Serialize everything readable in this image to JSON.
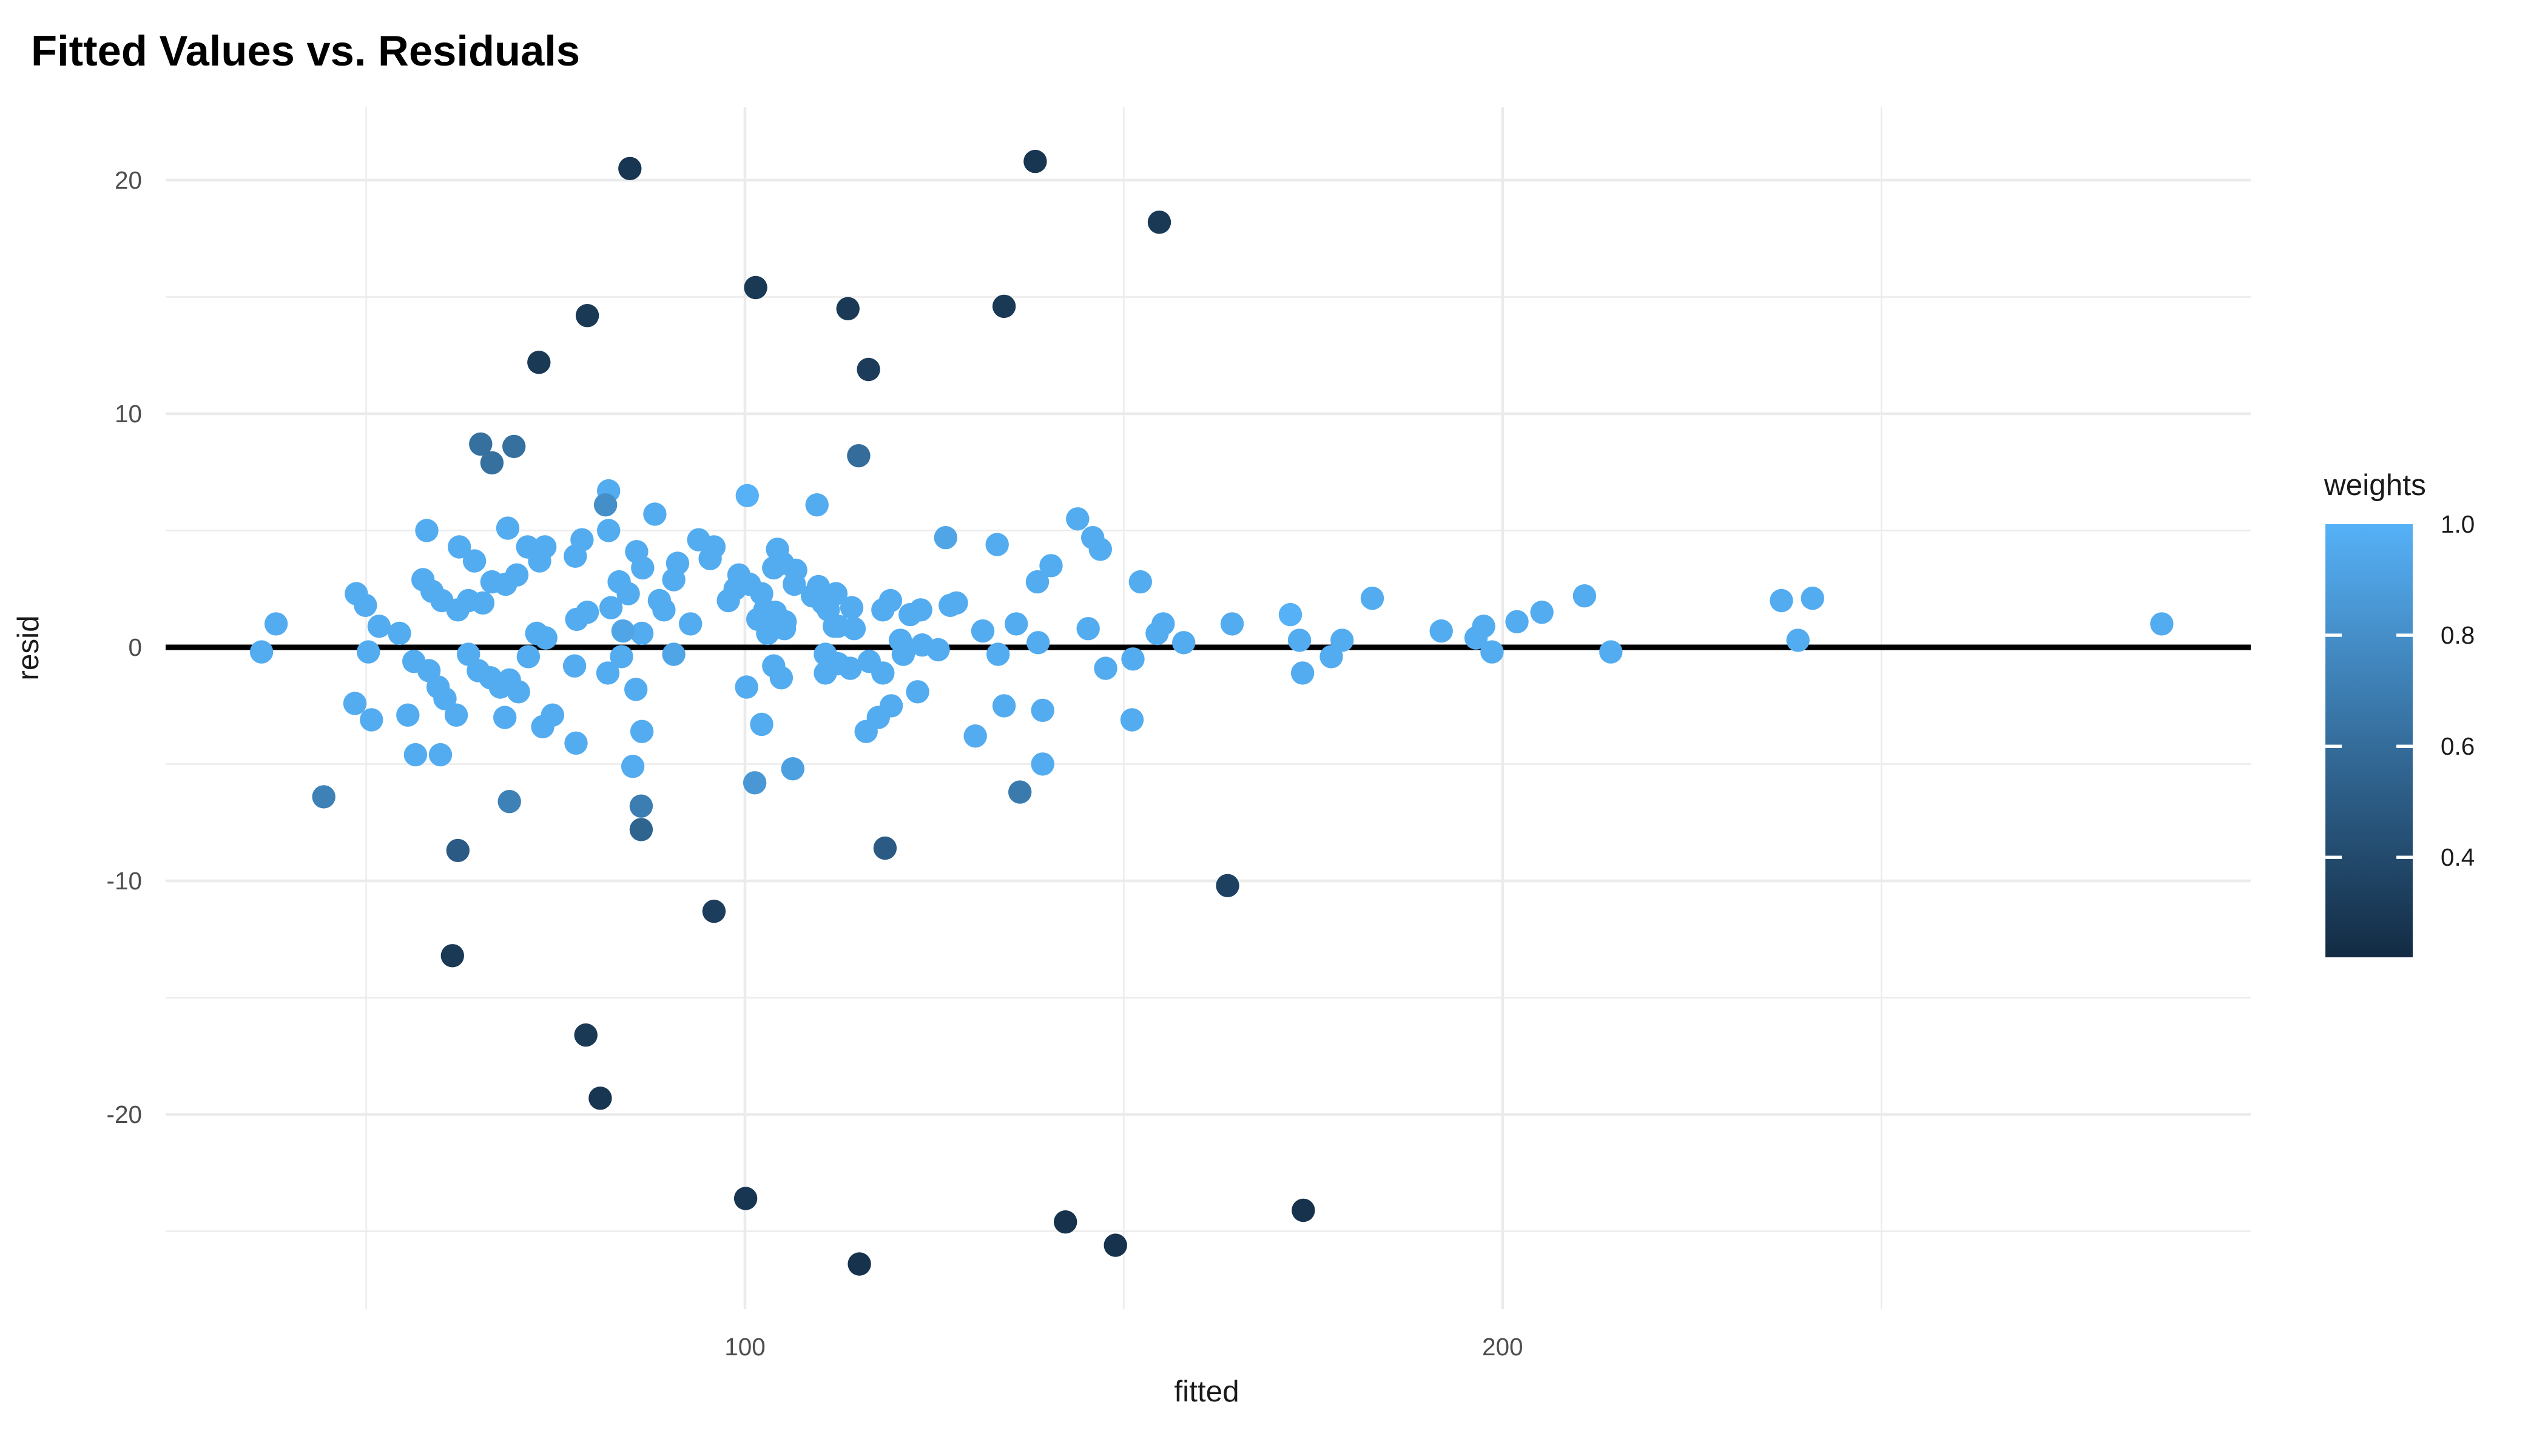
{
  "title": "Fitted Values vs. Residuals",
  "chart_data": {
    "type": "scatter",
    "title": "Fitted Values vs. Residuals",
    "xlabel": "fitted",
    "ylabel": "resid",
    "xlim": [
      23.5,
      299
    ],
    "ylim": [
      -28.3,
      23.1
    ],
    "x_major_ticks": [
      100,
      200
    ],
    "x_minor_ticks": [
      50,
      150,
      250
    ],
    "y_major_ticks": [
      20,
      10,
      0,
      -10,
      -20
    ],
    "y_minor_ticks": [
      15,
      5,
      -5,
      -15,
      -25
    ],
    "grid": "on",
    "gridline_color": "#EBEBEB",
    "hline_y": 0,
    "hline_color": "#000000",
    "point_color_low": "#132B43",
    "point_color_high": "#56B1F7",
    "weight_domain": [
      0.22,
      1.0
    ],
    "legend": {
      "title": "weights",
      "position": "right",
      "tick_labels": [
        "1.0",
        "0.8",
        "0.6",
        "0.4"
      ],
      "tick_values": [
        1.0,
        0.8,
        0.6,
        0.4
      ]
    },
    "series": [
      {
        "name": "residuals-vs-fitted",
        "points": [
          [
            82,
            6.7,
            0.97
          ],
          [
            100.3,
            6.5,
            1
          ],
          [
            109.5,
            6.1,
            0.97
          ],
          [
            88.1,
            5.7,
            0.97
          ],
          [
            143.9,
            5.5,
            0.97
          ],
          [
            58,
            5,
            0.97
          ],
          [
            68.7,
            5.1,
            0.97
          ],
          [
            82,
            5,
            0.97
          ],
          [
            78.5,
            4.6,
            0.97
          ],
          [
            77.6,
            3.9,
            0.97
          ],
          [
            62.3,
            4.3,
            0.97
          ],
          [
            71.3,
            4.3,
            0.97
          ],
          [
            73.6,
            4.3,
            0.97
          ],
          [
            72.9,
            3.7,
            0.97
          ],
          [
            69.9,
            3.1,
            0.97
          ],
          [
            64.3,
            3.7,
            0.97
          ],
          [
            85.7,
            4.1,
            0.97
          ],
          [
            86.5,
            3.4,
            0.97
          ],
          [
            93.9,
            4.6,
            0.97
          ],
          [
            95.9,
            4.3,
            0.97
          ],
          [
            95.4,
            3.8,
            0.97
          ],
          [
            91.1,
            3.6,
            0.97
          ],
          [
            90.6,
            2.9,
            0.97
          ],
          [
            83.4,
            2.8,
            0.97
          ],
          [
            99.2,
            3.1,
            0.97
          ],
          [
            100.6,
            2.7,
            0.97
          ],
          [
            98.7,
            2.5,
            0.97
          ],
          [
            104.3,
            4.2,
            0.97
          ],
          [
            105,
            3.6,
            0.97
          ],
          [
            103.8,
            3.4,
            0.97
          ],
          [
            106.7,
            3.3,
            0.97
          ],
          [
            106.5,
            2.7,
            0.97
          ],
          [
            109.7,
            2.6,
            0.97
          ],
          [
            112,
            2.3,
            0.97
          ],
          [
            110.3,
            1.9,
            0.97
          ],
          [
            102.6,
            1.6,
            0.97
          ],
          [
            105.3,
            1.1,
            0.97
          ],
          [
            103.6,
            0.8,
            0.97
          ],
          [
            114.1,
            1.7,
            0.97
          ],
          [
            112.3,
            0.9,
            0.97
          ],
          [
            114.4,
            0.8,
            0.97
          ],
          [
            119.2,
            2,
            0.97
          ],
          [
            123.2,
            1.6,
            0.97
          ],
          [
            127.9,
            1.9,
            0.97
          ],
          [
            126.5,
            4.7,
            0.93
          ],
          [
            133.3,
            4.4,
            0.97
          ],
          [
            140.4,
            3.5,
            0.97
          ],
          [
            145.9,
            4.7,
            0.97
          ],
          [
            146.9,
            4.2,
            0.97
          ],
          [
            152.2,
            2.8,
            0.97
          ],
          [
            138.6,
            2.8,
            0.97
          ],
          [
            48.7,
            2.3,
            0.97
          ],
          [
            57.5,
            2.9,
            0.97
          ],
          [
            66.6,
            2.8,
            0.97
          ],
          [
            68.4,
            2.7,
            0.97
          ],
          [
            58.7,
            2.4,
            0.97
          ],
          [
            60,
            2,
            0.97
          ],
          [
            49.9,
            1.8,
            0.97
          ],
          [
            51.7,
            0.9,
            0.97
          ],
          [
            54.4,
            0.6,
            0.97
          ],
          [
            62.1,
            1.6,
            0.97
          ],
          [
            63.5,
            2,
            0.97
          ],
          [
            65.4,
            1.9,
            0.97
          ],
          [
            72.5,
            0.6,
            0.97
          ],
          [
            73.7,
            0.4,
            0.97
          ],
          [
            77.8,
            1.2,
            0.97
          ],
          [
            79.2,
            1.5,
            0.97
          ],
          [
            82.3,
            1.7,
            0.97
          ],
          [
            84.6,
            2.3,
            0.97
          ],
          [
            86.4,
            0.6,
            0.97
          ],
          [
            38.1,
            1,
            0.97
          ],
          [
            36.2,
            -0.2,
            0.97
          ],
          [
            50.3,
            -0.2,
            0.97
          ],
          [
            56.3,
            -0.6,
            0.97
          ],
          [
            58.3,
            -1,
            0.97
          ],
          [
            59.5,
            -1.7,
            0.97
          ],
          [
            60.4,
            -2.2,
            0.97
          ],
          [
            63.5,
            -0.3,
            0.97
          ],
          [
            64.8,
            -1,
            0.97
          ],
          [
            61.9,
            -2.9,
            0.97
          ],
          [
            48.5,
            -2.4,
            0.97
          ],
          [
            50.7,
            -3.1,
            0.97
          ],
          [
            55.5,
            -2.9,
            0.97
          ],
          [
            56.5,
            -4.6,
            0.97
          ],
          [
            59.8,
            -4.6,
            0.97
          ],
          [
            66.4,
            -1.3,
            0.97
          ],
          [
            67.7,
            -1.7,
            0.97
          ],
          [
            68.9,
            -1.4,
            0.97
          ],
          [
            70.1,
            -1.9,
            0.97
          ],
          [
            68.3,
            -3,
            0.97
          ],
          [
            71.4,
            -0.4,
            0.97
          ],
          [
            74.6,
            -2.9,
            0.97
          ],
          [
            73.3,
            -3.4,
            0.97
          ],
          [
            77.5,
            -0.8,
            0.97
          ],
          [
            77.7,
            -4.1,
            0.97
          ],
          [
            81.9,
            -1.1,
            0.97
          ],
          [
            83.7,
            -0.4,
            0.97
          ],
          [
            83.9,
            0.7,
            0.93
          ],
          [
            85.6,
            -1.8,
            0.97
          ],
          [
            86.4,
            -3.6,
            0.97
          ],
          [
            85.2,
            -5.1,
            0.97
          ],
          [
            90.6,
            -0.3,
            0.93
          ],
          [
            89.3,
            1.6,
            0.97
          ],
          [
            92.8,
            1,
            0.97
          ],
          [
            88.7,
            2,
            0.97
          ],
          [
            97.8,
            2,
            0.97
          ],
          [
            102.2,
            2.3,
            0.97
          ],
          [
            101.7,
            1.2,
            0.97
          ],
          [
            104,
            1.5,
            0.97
          ],
          [
            105.2,
            0.8,
            0.97
          ],
          [
            103,
            0.6,
            0.97
          ],
          [
            108.9,
            2.2,
            0.97
          ],
          [
            111,
            1.6,
            0.97
          ],
          [
            111.8,
            0.9,
            0.97
          ],
          [
            118.2,
            1.6,
            0.97
          ],
          [
            121.8,
            1.4,
            0.97
          ],
          [
            127.1,
            1.8,
            0.97
          ],
          [
            120.5,
            0.3,
            0.97
          ],
          [
            123.4,
            0.1,
            0.97
          ],
          [
            125.5,
            -0.1,
            0.97
          ],
          [
            110.6,
            -0.3,
            0.97
          ],
          [
            112.3,
            -0.7,
            0.97
          ],
          [
            113.9,
            -0.9,
            0.97
          ],
          [
            110.6,
            -1.1,
            0.97
          ],
          [
            116.4,
            -0.6,
            0.97
          ],
          [
            118.2,
            -1.1,
            0.97
          ],
          [
            120.9,
            -0.3,
            0.97
          ],
          [
            100.2,
            -1.7,
            0.97
          ],
          [
            103.8,
            -0.8,
            0.97
          ],
          [
            104.8,
            -1.3,
            0.97
          ],
          [
            102.2,
            -3.3,
            0.97
          ],
          [
            116,
            -3.6,
            0.97
          ],
          [
            117.6,
            -3,
            0.97
          ],
          [
            119.3,
            -2.5,
            0.97
          ],
          [
            122.8,
            -1.9,
            0.97
          ],
          [
            130.4,
            -3.8,
            0.97
          ],
          [
            131.4,
            0.7,
            0.97
          ],
          [
            133.4,
            -0.3,
            0.97
          ],
          [
            135.8,
            1,
            0.97
          ],
          [
            138.7,
            0.2,
            0.97
          ],
          [
            134.2,
            -2.5,
            0.97
          ],
          [
            139.3,
            -2.7,
            0.97
          ],
          [
            145.3,
            0.8,
            0.97
          ],
          [
            139.3,
            -5,
            0.97
          ],
          [
            147.6,
            -0.9,
            0.97
          ],
          [
            151.1,
            -3.1,
            0.97
          ],
          [
            155.2,
            1,
            0.97
          ],
          [
            154.4,
            0.6,
            0.97
          ],
          [
            157.9,
            0.2,
            0.97
          ],
          [
            151.2,
            -0.5,
            0.97
          ],
          [
            164.3,
            1,
            0.97
          ],
          [
            172,
            1.4,
            1
          ],
          [
            173.2,
            0.3,
            0.97
          ],
          [
            173.6,
            -1.1,
            0.97
          ],
          [
            177.4,
            -0.4,
            0.97
          ],
          [
            178.8,
            0.3,
            0.97
          ],
          [
            182.8,
            2.1,
            0.97
          ],
          [
            191.9,
            0.7,
            0.97
          ],
          [
            196.5,
            0.4,
            0.97
          ],
          [
            197.5,
            0.9,
            0.97
          ],
          [
            198.6,
            -0.2,
            0.97
          ],
          [
            201.9,
            1.1,
            0.97
          ],
          [
            205.2,
            1.5,
            0.97
          ],
          [
            210.8,
            2.2,
            0.97
          ],
          [
            214.3,
            -0.2,
            0.97
          ],
          [
            236.8,
            2,
            0.97
          ],
          [
            240.9,
            2.1,
            0.97
          ],
          [
            239,
            0.3,
            0.97
          ],
          [
            287,
            1,
            0.97
          ],
          [
            65.1,
            8.7,
            0.62
          ],
          [
            69.5,
            8.6,
            0.62
          ],
          [
            66.6,
            7.9,
            0.62
          ],
          [
            81.6,
            6.1,
            0.8
          ],
          [
            115,
            8.2,
            0.6
          ],
          [
            44.4,
            -6.4,
            0.72
          ],
          [
            68.9,
            -6.6,
            0.72
          ],
          [
            62.1,
            -8.7,
            0.5
          ],
          [
            86.3,
            -6.8,
            0.7
          ],
          [
            86.3,
            -7.8,
            0.55
          ],
          [
            118.5,
            -8.6,
            0.5
          ],
          [
            136.3,
            -6.2,
            0.68
          ],
          [
            101.3,
            -5.8,
            0.85
          ],
          [
            106.3,
            -5.2,
            0.9
          ],
          [
            84.8,
            20.5,
            0.28
          ],
          [
            138.3,
            20.8,
            0.28
          ],
          [
            154.7,
            18.2,
            0.3
          ],
          [
            101.4,
            15.4,
            0.3
          ],
          [
            79.2,
            14.2,
            0.3
          ],
          [
            113.6,
            14.5,
            0.3
          ],
          [
            134.2,
            14.6,
            0.3
          ],
          [
            72.8,
            12.2,
            0.3
          ],
          [
            116.3,
            11.9,
            0.32
          ],
          [
            95.9,
            -11.3,
            0.33
          ],
          [
            61.4,
            -13.2,
            0.3
          ],
          [
            163.7,
            -10.2,
            0.35
          ],
          [
            79,
            -16.6,
            0.3
          ],
          [
            80.9,
            -19.3,
            0.28
          ],
          [
            100.1,
            -23.6,
            0.28
          ],
          [
            115.1,
            -26.4,
            0.26
          ],
          [
            142.3,
            -24.6,
            0.26
          ],
          [
            148.9,
            -25.6,
            0.26
          ],
          [
            173.7,
            -24.1,
            0.26
          ]
        ]
      }
    ]
  }
}
